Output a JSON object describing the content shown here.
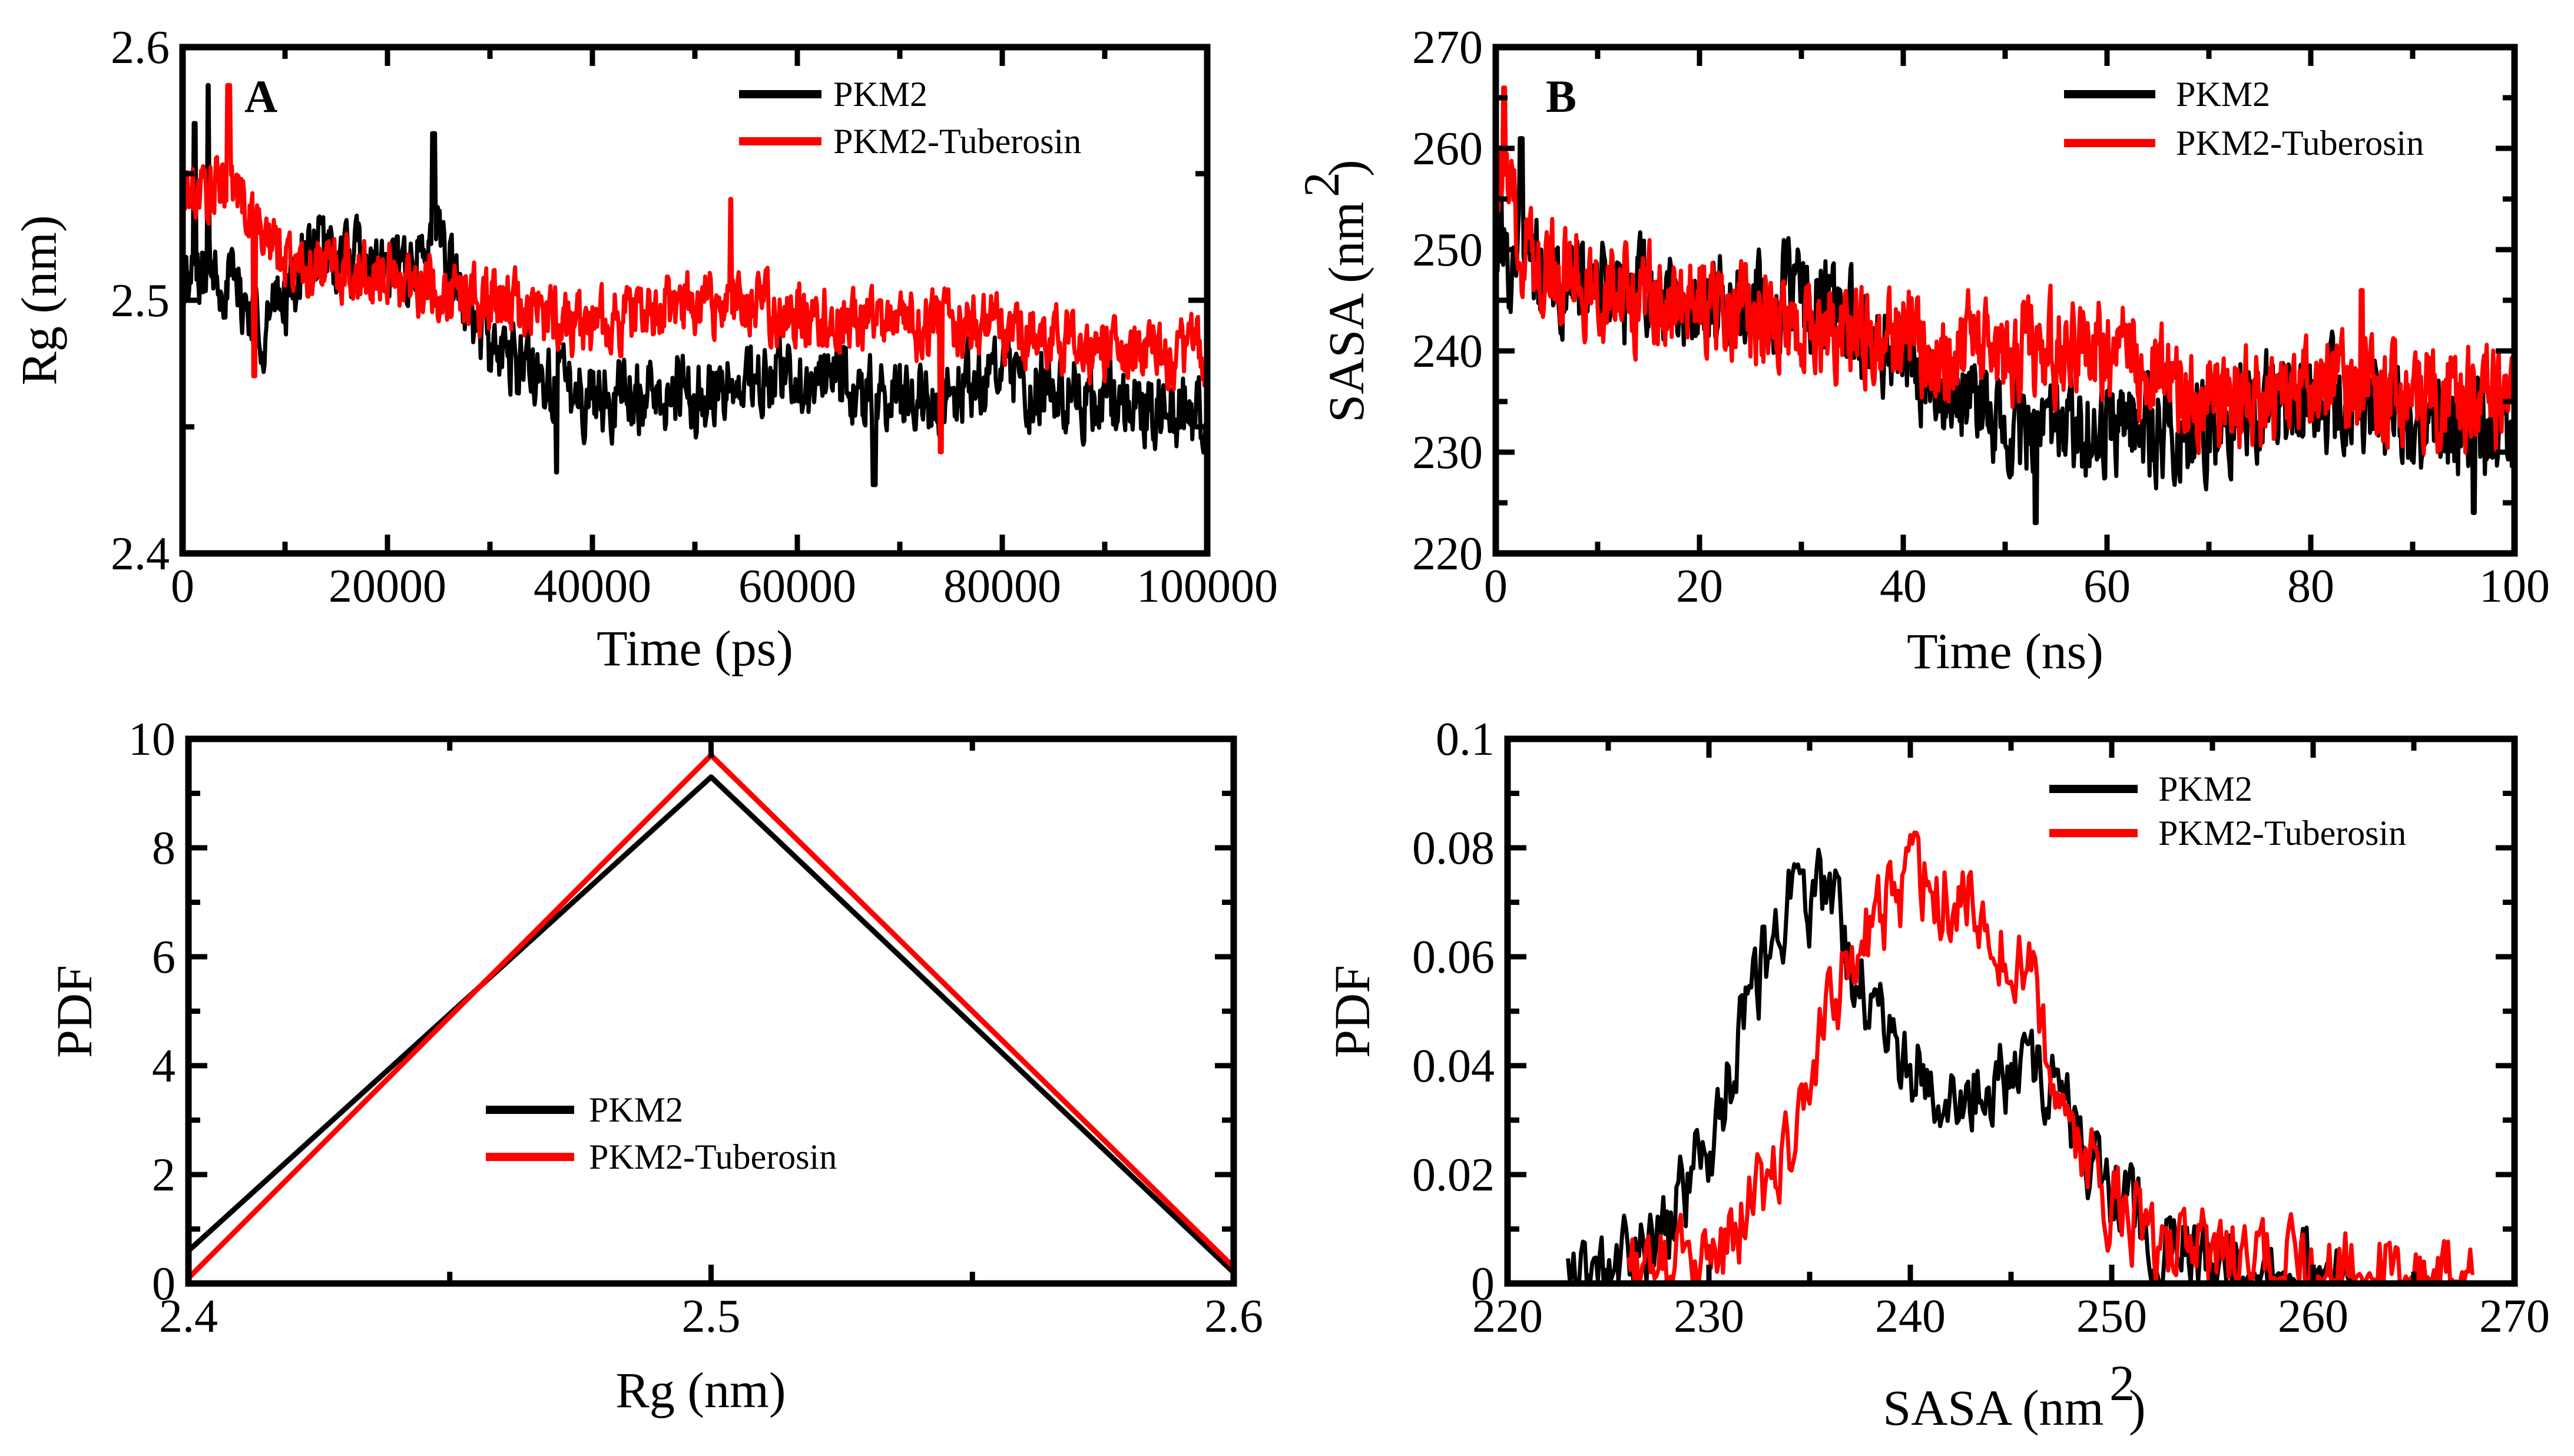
{
  "chart_data": [
    {
      "id": "A",
      "type": "line",
      "panel_label": "A",
      "xlabel": "Time (ps)",
      "ylabel": "Rg (nm)",
      "xlim": [
        0,
        100000
      ],
      "ylim": [
        2.4,
        2.6
      ],
      "x_major_ticks": [
        0,
        20000,
        40000,
        60000,
        80000,
        100000
      ],
      "y_major_ticks": [
        2.4,
        2.5,
        2.6
      ],
      "y_tick_labels": [
        "2.4",
        "2.5",
        "2.6"
      ],
      "legend": {
        "position": "top-right",
        "entries": [
          "PKM2",
          "PKM2-Tuberosin"
        ]
      },
      "series": [
        {
          "name": "PKM2",
          "color": "#000000",
          "x_start": 0,
          "x_end": 100000,
          "anchors": [
            [
              0,
              2.505
            ],
            [
              3000,
              2.515
            ],
            [
              8000,
              2.49
            ],
            [
              13000,
              2.52
            ],
            [
              20000,
              2.51
            ],
            [
              25000,
              2.52
            ],
            [
              30000,
              2.48
            ],
            [
              40000,
              2.462
            ],
            [
              50000,
              2.463
            ],
            [
              60000,
              2.47
            ],
            [
              70000,
              2.46
            ],
            [
              80000,
              2.47
            ],
            [
              90000,
              2.46
            ],
            [
              100000,
              2.455
            ]
          ],
          "noise": 0.009,
          "spikes": [
            [
              24500,
              2.566
            ],
            [
              2500,
              2.585
            ],
            [
              1200,
              2.57
            ],
            [
              67500,
              2.427
            ],
            [
              36500,
              2.432
            ]
          ]
        },
        {
          "name": "PKM2-Tuberosin",
          "color": "#ff0000",
          "x_start": 0,
          "x_end": 100000,
          "anchors": [
            [
              0,
              2.54
            ],
            [
              5000,
              2.545
            ],
            [
              10000,
              2.515
            ],
            [
              20000,
              2.51
            ],
            [
              30000,
              2.5
            ],
            [
              40000,
              2.49
            ],
            [
              50000,
              2.5
            ],
            [
              60000,
              2.495
            ],
            [
              70000,
              2.49
            ],
            [
              80000,
              2.49
            ],
            [
              90000,
              2.48
            ],
            [
              100000,
              2.48
            ]
          ],
          "noise": 0.008,
          "spikes": [
            [
              4500,
              2.585
            ],
            [
              53500,
              2.54
            ],
            [
              74000,
              2.44
            ],
            [
              7000,
              2.47
            ]
          ]
        }
      ]
    },
    {
      "id": "B",
      "type": "line",
      "panel_label": "B",
      "xlabel": "Time (ns)",
      "ylabel": "SASA (nm",
      "y_unit_exponent": "2",
      "xlim": [
        0,
        100
      ],
      "ylim": [
        220,
        270
      ],
      "x_major_ticks": [
        0,
        20,
        40,
        60,
        80,
        100
      ],
      "y_major_ticks": [
        220,
        230,
        240,
        250,
        260,
        270
      ],
      "legend": {
        "position": "top-right",
        "entries": [
          "PKM2",
          "PKM2-Tuberosin"
        ]
      },
      "series": [
        {
          "name": "PKM2",
          "color": "#000000",
          "x_start": 0,
          "x_end": 100,
          "anchors": [
            [
              0,
              250
            ],
            [
              5,
              247
            ],
            [
              10,
              246
            ],
            [
              20,
              244
            ],
            [
              30,
              245
            ],
            [
              40,
              240
            ],
            [
              50,
              232
            ],
            [
              60,
              232
            ],
            [
              70,
              233
            ],
            [
              80,
              236
            ],
            [
              90,
              233
            ],
            [
              100,
              232
            ]
          ],
          "noise": 3.0,
          "spikes": [
            [
              2.5,
              261
            ],
            [
              0.5,
              258
            ],
            [
              53,
              223
            ],
            [
              96,
              224
            ]
          ]
        },
        {
          "name": "PKM2-Tuberosin",
          "color": "#ff0000",
          "x_start": 0,
          "x_end": 100,
          "anchors": [
            [
              0,
              258
            ],
            [
              3,
              250
            ],
            [
              10,
              246
            ],
            [
              20,
              244
            ],
            [
              30,
              243
            ],
            [
              40,
              241
            ],
            [
              50,
              240
            ],
            [
              60,
              240
            ],
            [
              70,
              235
            ],
            [
              80,
              236
            ],
            [
              90,
              236
            ],
            [
              100,
              235
            ]
          ],
          "noise": 3.0,
          "spikes": [
            [
              0.8,
              266
            ],
            [
              85,
              246
            ]
          ]
        }
      ]
    },
    {
      "id": "C",
      "type": "line",
      "panel_label": "",
      "xlabel": "Rg (nm)",
      "ylabel": "PDF",
      "xlim": [
        2.4,
        2.6
      ],
      "ylim": [
        0,
        10
      ],
      "x_major_ticks": [
        2.4,
        2.5,
        2.6
      ],
      "x_tick_labels": [
        "2.4",
        "2.5",
        "2.6"
      ],
      "x_minor_ticks": [
        2.45,
        2.55
      ],
      "y_major_ticks": [
        0,
        2,
        4,
        6,
        8,
        10
      ],
      "legend": {
        "position": "center",
        "entries": [
          "PKM2",
          "PKM2-Tuberosin"
        ]
      },
      "series": [
        {
          "name": "PKM2",
          "color": "#000000",
          "x": [
            2.4,
            2.5,
            2.6
          ],
          "y": [
            0.6,
            9.3,
            0.2
          ]
        },
        {
          "name": "PKM2-Tuberosin",
          "color": "#ff0000",
          "x": [
            2.4,
            2.5,
            2.6
          ],
          "y": [
            0.1,
            9.7,
            0.3
          ]
        }
      ]
    },
    {
      "id": "D",
      "type": "line",
      "panel_label": "",
      "xlabel": "SASA (nm",
      "x_unit_exponent": "2",
      "ylabel": "PDF",
      "xlim": [
        220,
        270
      ],
      "ylim": [
        0,
        0.1
      ],
      "x_major_ticks": [
        220,
        230,
        240,
        250,
        260,
        270
      ],
      "y_major_ticks": [
        0,
        0.02,
        0.04,
        0.06,
        0.08,
        0.1
      ],
      "y_tick_labels": [
        "0",
        "0.02",
        "0.04",
        "0.06",
        "0.08",
        "0.1"
      ],
      "legend": {
        "position": "top-right",
        "entries": [
          "PKM2",
          "PKM2-Tuberosin"
        ]
      },
      "series": [
        {
          "name": "PKM2",
          "color": "#000000",
          "x_start": 223,
          "x_end": 262,
          "anchors": [
            [
              223,
              0
            ],
            [
              226,
              0.003
            ],
            [
              228,
              0.01
            ],
            [
              230,
              0.025
            ],
            [
              232,
              0.05
            ],
            [
              234,
              0.072
            ],
            [
              236,
              0.07
            ],
            [
              237,
              0.06
            ],
            [
              238,
              0.05
            ],
            [
              239,
              0.045
            ],
            [
              240,
              0.04
            ],
            [
              242,
              0.036
            ],
            [
              244,
              0.038
            ],
            [
              246,
              0.04
            ],
            [
              248,
              0.03
            ],
            [
              250,
              0.018
            ],
            [
              252,
              0.01
            ],
            [
              254,
              0.005
            ],
            [
              256,
              0.002
            ],
            [
              258,
              0.001
            ],
            [
              262,
              0
            ]
          ],
          "noise": 0.005
        },
        {
          "name": "PKM2-Tuberosin",
          "color": "#ff0000",
          "x_start": 226,
          "x_end": 268,
          "anchors": [
            [
              226,
              0
            ],
            [
              229,
              0.002
            ],
            [
              231,
              0.008
            ],
            [
              233,
              0.02
            ],
            [
              235,
              0.035
            ],
            [
              236,
              0.05
            ],
            [
              237,
              0.058
            ],
            [
              238,
              0.065
            ],
            [
              240,
              0.075
            ],
            [
              242,
              0.072
            ],
            [
              244,
              0.068
            ],
            [
              246,
              0.055
            ],
            [
              247,
              0.04
            ],
            [
              248,
              0.028
            ],
            [
              250,
              0.015
            ],
            [
              252,
              0.008
            ],
            [
              255,
              0.004
            ],
            [
              258,
              0.002
            ],
            [
              262,
              0.001
            ],
            [
              268,
              0
            ]
          ],
          "noise": 0.005
        }
      ]
    }
  ]
}
